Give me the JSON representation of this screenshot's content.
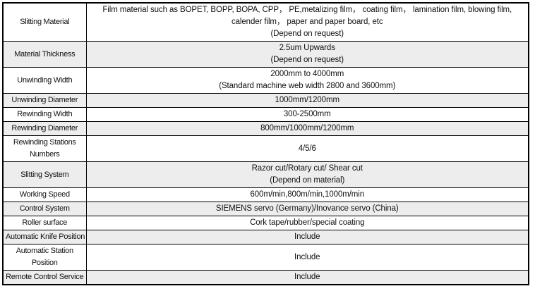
{
  "table": {
    "border_color": "#000000",
    "stripe_color": "#ededed",
    "text_color": "#111111",
    "rows": [
      {
        "label_lines": [
          "Slitting Material"
        ],
        "value_lines": [
          "Film material such as BOPET, BOPP, BOPA, CPP， PE,metalizing film， coating film， lamination film, blowing film, calender film， paper and paper board, etc",
          "(Depend on request)"
        ],
        "shaded": false
      },
      {
        "label_lines": [
          "Material Thickness"
        ],
        "value_lines": [
          "2.5um Upwards",
          "(Depend on request)"
        ],
        "shaded": true
      },
      {
        "label_lines": [
          "Unwinding Width"
        ],
        "value_lines": [
          "2000mm to 4000mm",
          "(Standard machine web width 2800 and 3600mm)"
        ],
        "shaded": false
      },
      {
        "label_lines": [
          "Unwinding Diameter"
        ],
        "value_lines": [
          "1000mm/1200mm"
        ],
        "shaded": true
      },
      {
        "label_lines": [
          "Rewinding Width"
        ],
        "value_lines": [
          "300-2500mm"
        ],
        "shaded": false
      },
      {
        "label_lines": [
          "Rewinding Diameter"
        ],
        "value_lines": [
          "800mm/1000mm/1200mm"
        ],
        "shaded": true
      },
      {
        "label_lines": [
          "Rewinding Stations",
          "Numbers"
        ],
        "value_lines": [
          "4/5/6"
        ],
        "shaded": false
      },
      {
        "label_lines": [
          "Slitting System"
        ],
        "value_lines": [
          "Razor cut/Rotary cut/ Shear cut",
          "(Depend on material)"
        ],
        "shaded": true
      },
      {
        "label_lines": [
          "Working Speed"
        ],
        "value_lines": [
          "600m/min,800m/min,1000m/min"
        ],
        "shaded": false
      },
      {
        "label_lines": [
          "Control System"
        ],
        "value_lines": [
          "SIEMENS servo (Germany)/Inovance servo (China)"
        ],
        "shaded": true
      },
      {
        "label_lines": [
          "Roller surface"
        ],
        "value_lines": [
          "Cork tape/rubber/special coating"
        ],
        "shaded": false
      },
      {
        "label_lines": [
          "Automatic Knife Position"
        ],
        "value_lines": [
          "Include"
        ],
        "shaded": true
      },
      {
        "label_lines": [
          "Automatic Station",
          "Position"
        ],
        "value_lines": [
          "Include"
        ],
        "shaded": false
      },
      {
        "label_lines": [
          "Remote Control Service"
        ],
        "value_lines": [
          "Include"
        ],
        "shaded": true
      }
    ]
  }
}
